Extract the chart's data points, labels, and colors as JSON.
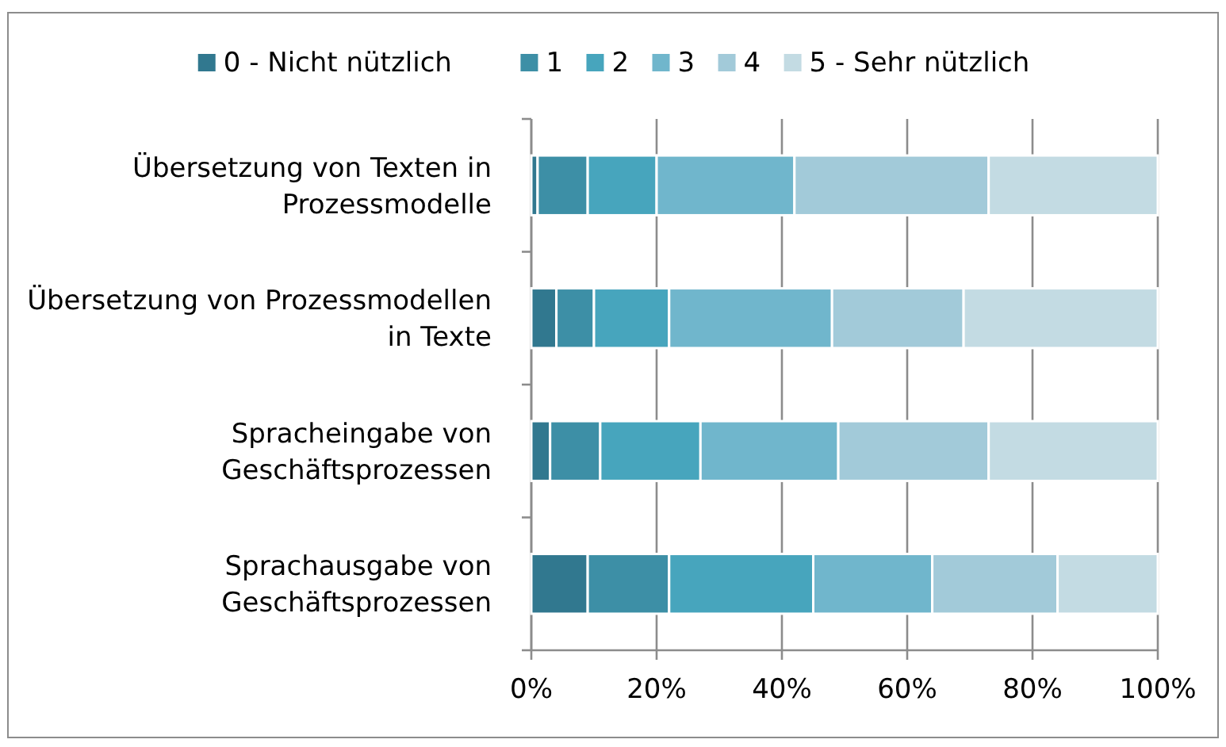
{
  "chart_data": {
    "type": "bar",
    "orientation": "horizontal",
    "stacked": true,
    "categories": [
      "Übersetzung von Texten in Prozessmodelle",
      "Übersetzung von Prozessmodellen in Texte",
      "Spracheingabe von Geschäftsprozessen",
      "Sprachausgabe von Geschäftsprozessen"
    ],
    "series": [
      {
        "name": "0 - Nicht nützlich",
        "color": "#31788f",
        "values": [
          1,
          4,
          3,
          9
        ]
      },
      {
        "name": "1",
        "color": "#3d8fa6",
        "values": [
          8,
          6,
          8,
          13
        ]
      },
      {
        "name": "2",
        "color": "#47a5bd",
        "values": [
          11,
          12,
          16,
          23
        ]
      },
      {
        "name": "3",
        "color": "#70b6cc",
        "values": [
          22,
          26,
          22,
          19
        ]
      },
      {
        "name": "4",
        "color": "#a2cad9",
        "values": [
          31,
          21,
          24,
          20
        ]
      },
      {
        "name": "5 - Sehr nützlich",
        "color": "#c3dbe3",
        "values": [
          27,
          31,
          27,
          16
        ]
      }
    ],
    "xlim": [
      0,
      100
    ],
    "xticks": [
      {
        "value": 0,
        "label": "0%"
      },
      {
        "value": 20,
        "label": "20%"
      },
      {
        "value": 40,
        "label": "40%"
      },
      {
        "value": 60,
        "label": "60%"
      },
      {
        "value": 80,
        "label": "80%"
      },
      {
        "value": 100,
        "label": "100%"
      }
    ],
    "grid": "x",
    "legend": "top"
  }
}
